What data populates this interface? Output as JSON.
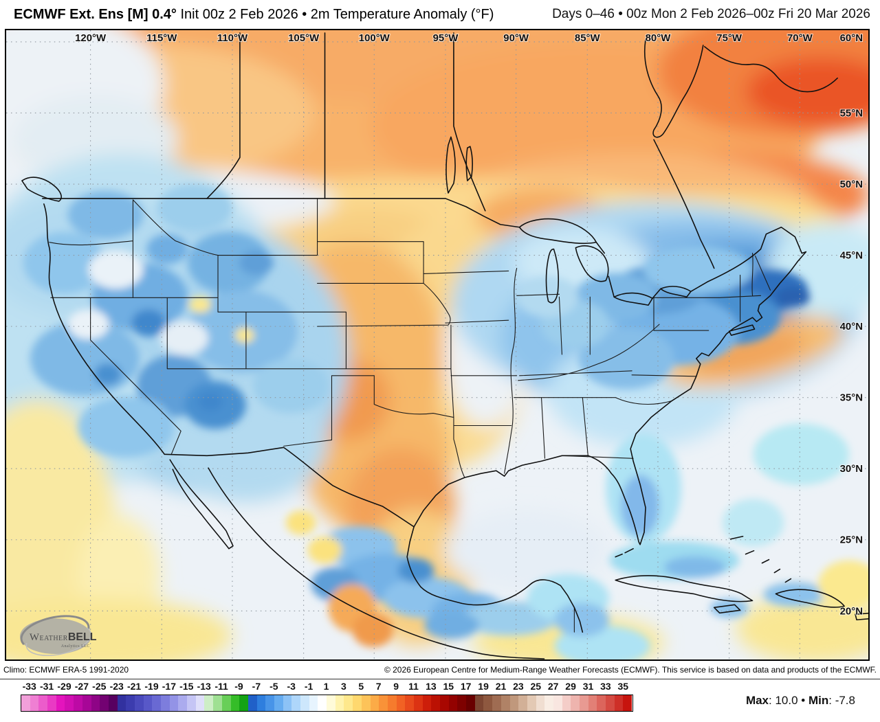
{
  "header": {
    "title_bold": "ECMWF Ext. Ens [M] 0.4°",
    "title_regular": " Init 00z 2 Feb 2026 • 2m Temperature Anomaly (°F)",
    "right": "Days 0–46 • 00z Mon 2 Feb 2026–00z Fri 20 Mar 2026"
  },
  "map": {
    "lon_labels": [
      "120°W",
      "115°W",
      "110°W",
      "105°W",
      "100°W",
      "95°W",
      "90°W",
      "85°W",
      "80°W",
      "75°W",
      "70°W"
    ],
    "lat_labels": [
      "60°N",
      "55°N",
      "50°N",
      "45°N",
      "40°N",
      "35°N",
      "30°N",
      "25°N",
      "20°N"
    ],
    "logo": {
      "part1": "Weather",
      "part2": "BELL",
      "sub": "Analytics LLC"
    },
    "key_colors": {
      "warm_canada": "#f8a761",
      "warm_core": "#ea5526",
      "plains_warm": "#f6b869",
      "cool_west": "#7fb9e6",
      "cool_east_core": "#2f6fbe",
      "tropical_yellow": "#f9e794",
      "neutral": "#edf2f7"
    }
  },
  "footer": {
    "climo": "Climo: ECMWF ERA-5 1991-2020",
    "copyright": "© 2026 European Centre for Medium-Range Weather Forecasts (ECMWF). This service is based on data and products of the ECMWF.",
    "max_label": "Max",
    "max_value": ": 10.0",
    "separator": " • ",
    "min_label": "Min",
    "min_value": ": -7.8"
  },
  "colorbar": {
    "domain": [
      -34,
      36
    ],
    "tick_labels": [
      "-33",
      "-31",
      "-29",
      "-27",
      "-25",
      "-23",
      "-21",
      "-19",
      "-17",
      "-15",
      "-13",
      "-11",
      "-9",
      "-7",
      "-5",
      "-3",
      "-1",
      "1",
      "3",
      "5",
      "7",
      "9",
      "11",
      "13",
      "15",
      "17",
      "19",
      "21",
      "23",
      "25",
      "27",
      "29",
      "31",
      "33",
      "35"
    ],
    "cells": [
      "#f2a0da",
      "#ef7fd3",
      "#ec5ccb",
      "#e93ac4",
      "#e414bd",
      "#d10fb2",
      "#bd0aa5",
      "#a70697",
      "#8e0486",
      "#730272",
      "#570060",
      "#32319f",
      "#3c3cae",
      "#4a4abc",
      "#5858c8",
      "#6969d3",
      "#7d7ddd",
      "#9393e6",
      "#ababee",
      "#c5c5f5",
      "#dfdffa",
      "#cdeec6",
      "#9fe093",
      "#68cf58",
      "#35bd28",
      "#14a214",
      "#2060c8",
      "#2e7ede",
      "#4894e8",
      "#66acf0",
      "#8cc2f6",
      "#aed6fa",
      "#cde7fc",
      "#e7f4fe",
      "#ffffff",
      "#fffbd9",
      "#fff3ae",
      "#fee88c",
      "#fed86e",
      "#fdc359",
      "#fcab47",
      "#f99238",
      "#f67b2d",
      "#f16224",
      "#e84a1c",
      "#dc3313",
      "#cd1e0a",
      "#bb1103",
      "#a80701",
      "#930200",
      "#7e0100",
      "#690000",
      "#7c4531",
      "#8e583f",
      "#9f6c52",
      "#b08266",
      "#c0987c",
      "#d2b097",
      "#e3c9b4",
      "#f0ded1",
      "#f9ede4",
      "#f9e6e0",
      "#f4cdc8",
      "#eeb4ae",
      "#e89a92",
      "#e28076",
      "#dc655c",
      "#d54a42",
      "#ce2f28",
      "#c7140e"
    ]
  }
}
